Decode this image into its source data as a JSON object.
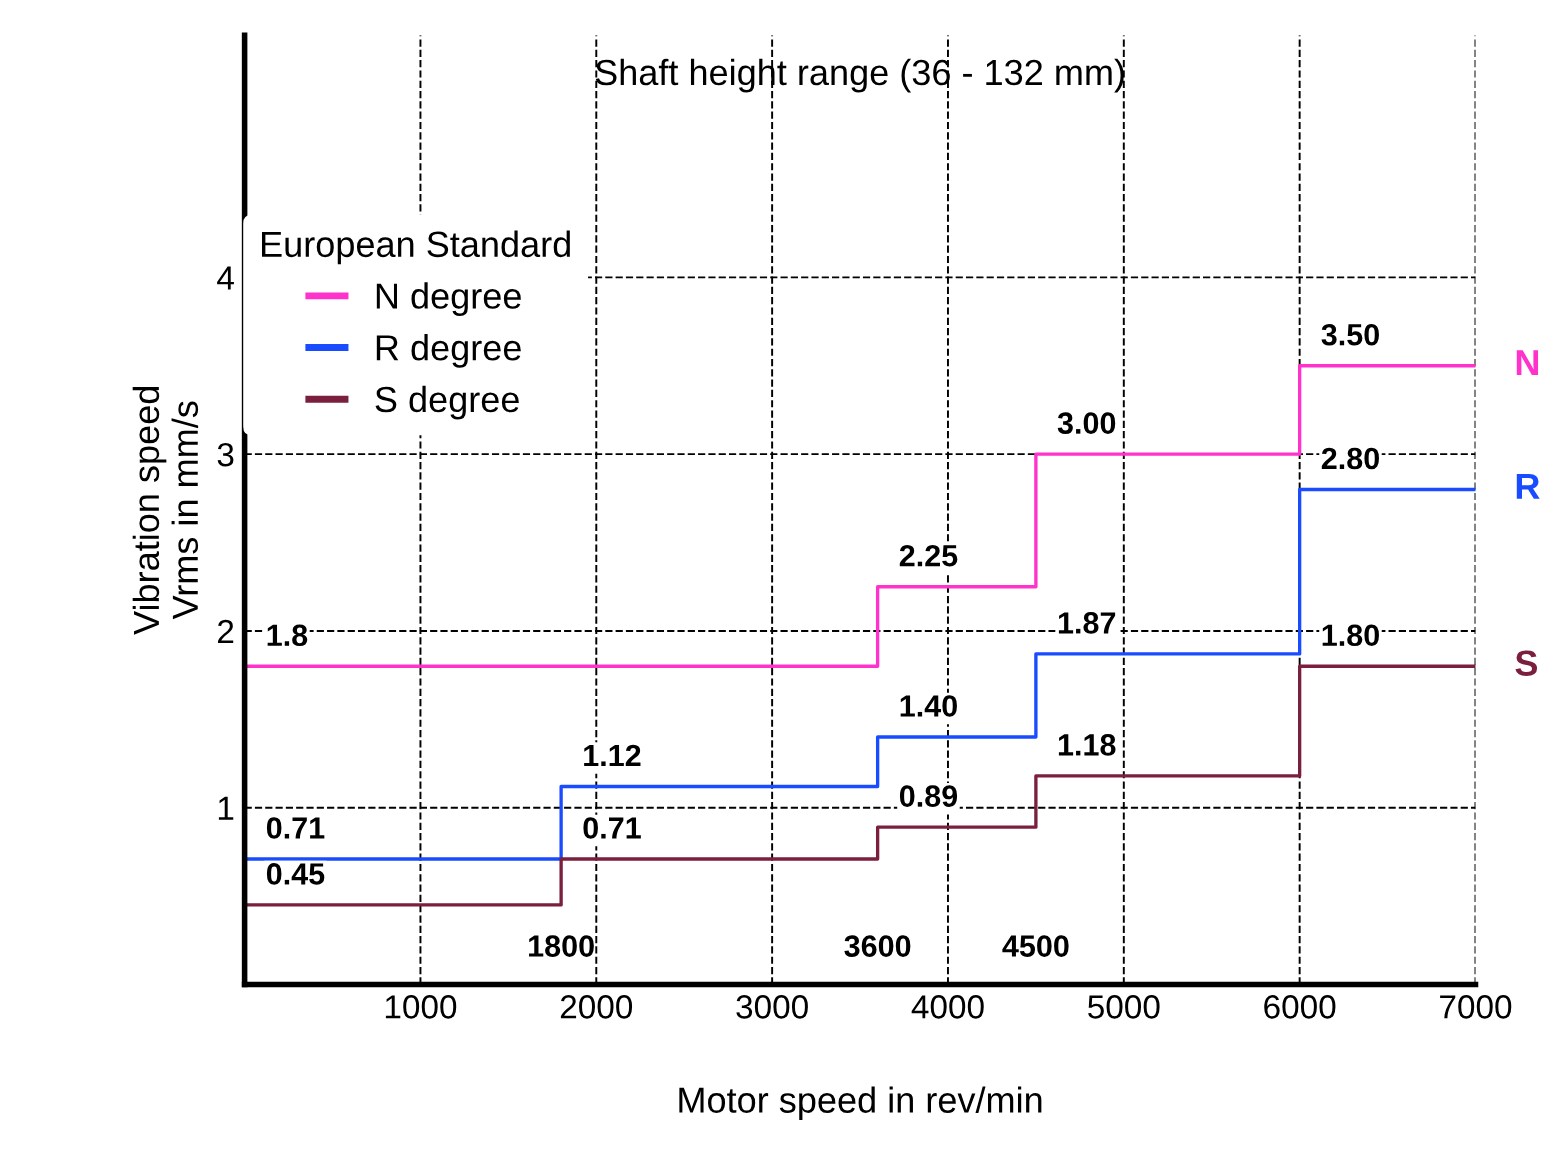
{
  "chart_data": {
    "type": "step",
    "title": "Shaft height range (36 - 132 mm)",
    "xlabel": "Motor speed in rev/min",
    "ylabel": "Vibration speed\nVrms in mm/s",
    "legend_title": "European Standard",
    "series": [
      {
        "name": "N degree",
        "color": "#ff33cc",
        "x": [
          0,
          3600,
          4500,
          6000,
          7000
        ],
        "values": [
          1.8,
          2.25,
          3.0,
          3.5,
          3.5
        ],
        "value_labels": [
          "1.8",
          "2.25",
          "3.00",
          "3.50",
          null
        ]
      },
      {
        "name": "R degree",
        "color": "#1a4cff",
        "x": [
          0,
          1800,
          3600,
          4500,
          6000,
          7000
        ],
        "values": [
          0.71,
          1.12,
          1.4,
          1.87,
          2.8,
          2.8
        ],
        "value_labels": [
          "0.71",
          "1.12",
          "1.40",
          "1.87",
          "2.80",
          null
        ]
      },
      {
        "name": "S degree",
        "color": "#7a1f3d",
        "x": [
          0,
          1800,
          3600,
          4500,
          6000,
          7000
        ],
        "values": [
          0.45,
          0.71,
          0.89,
          1.18,
          1.8,
          1.8
        ],
        "value_labels": [
          "0.45",
          "0.71",
          "0.89",
          "1.18",
          "1.80",
          null
        ]
      }
    ],
    "annotations": [
      "N",
      "R",
      "S"
    ],
    "x2lim": [
      0,
      7000
    ],
    "x2ticks": [
      1800,
      3600,
      4500
    ],
    "xlim": [
      0,
      7000
    ],
    "ylim": [
      0,
      5.37
    ],
    "xticks": [
      1000,
      2000,
      3000,
      4000,
      5000,
      6000,
      7000
    ],
    "yticks": [
      1,
      2,
      3,
      4
    ],
    "grid": true,
    "line_style": "solid",
    "legend": "top left"
  }
}
